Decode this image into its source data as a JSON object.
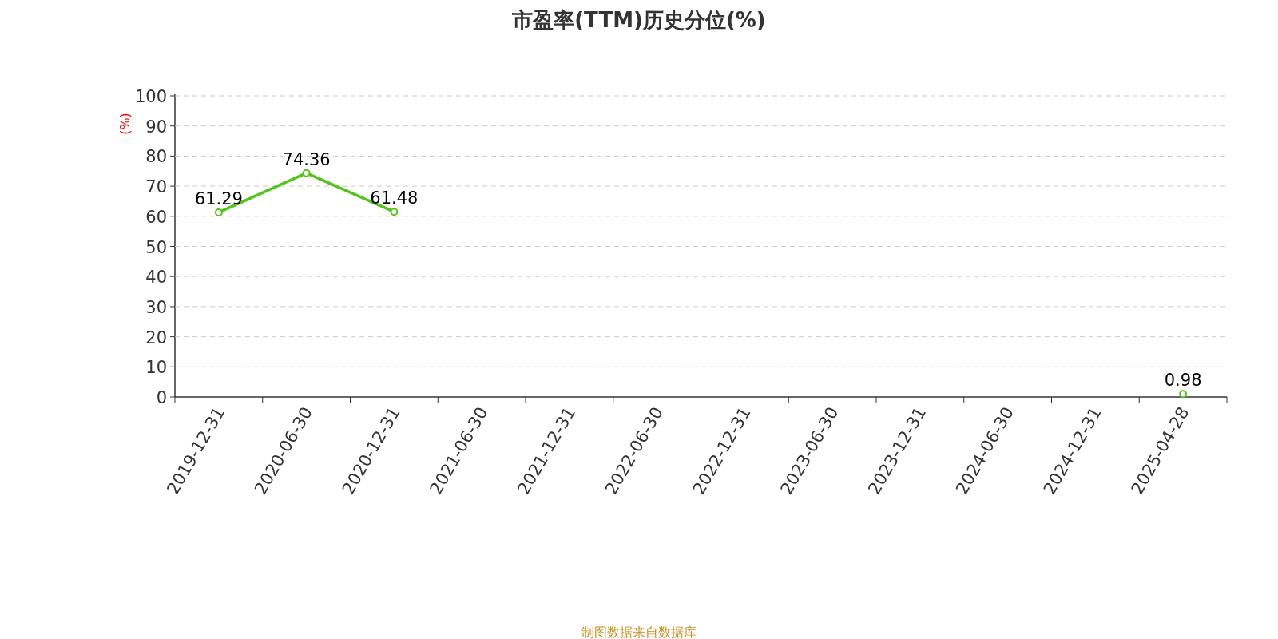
{
  "chart_data": {
    "type": "line",
    "title": "市盈率(TTM)历史分位(%)",
    "ylabel": "(%)",
    "categories": [
      "2019-12-31",
      "2020-06-30",
      "2020-12-31",
      "2021-06-30",
      "2021-12-31",
      "2022-06-30",
      "2022-12-31",
      "2023-06-30",
      "2023-12-31",
      "2024-06-30",
      "2024-12-31",
      "2025-04-28"
    ],
    "values": [
      61.29,
      74.36,
      61.48,
      null,
      null,
      null,
      null,
      null,
      null,
      null,
      null,
      0.98
    ],
    "color": "#52c41a",
    "ylim": [
      0,
      100
    ],
    "yticks": [
      0,
      10,
      20,
      30,
      40,
      50,
      60,
      70,
      80,
      90,
      100
    ],
    "grid": "y",
    "marker": "circle",
    "data_labels": true,
    "annotations": [
      "制图数据来自数据库"
    ]
  }
}
